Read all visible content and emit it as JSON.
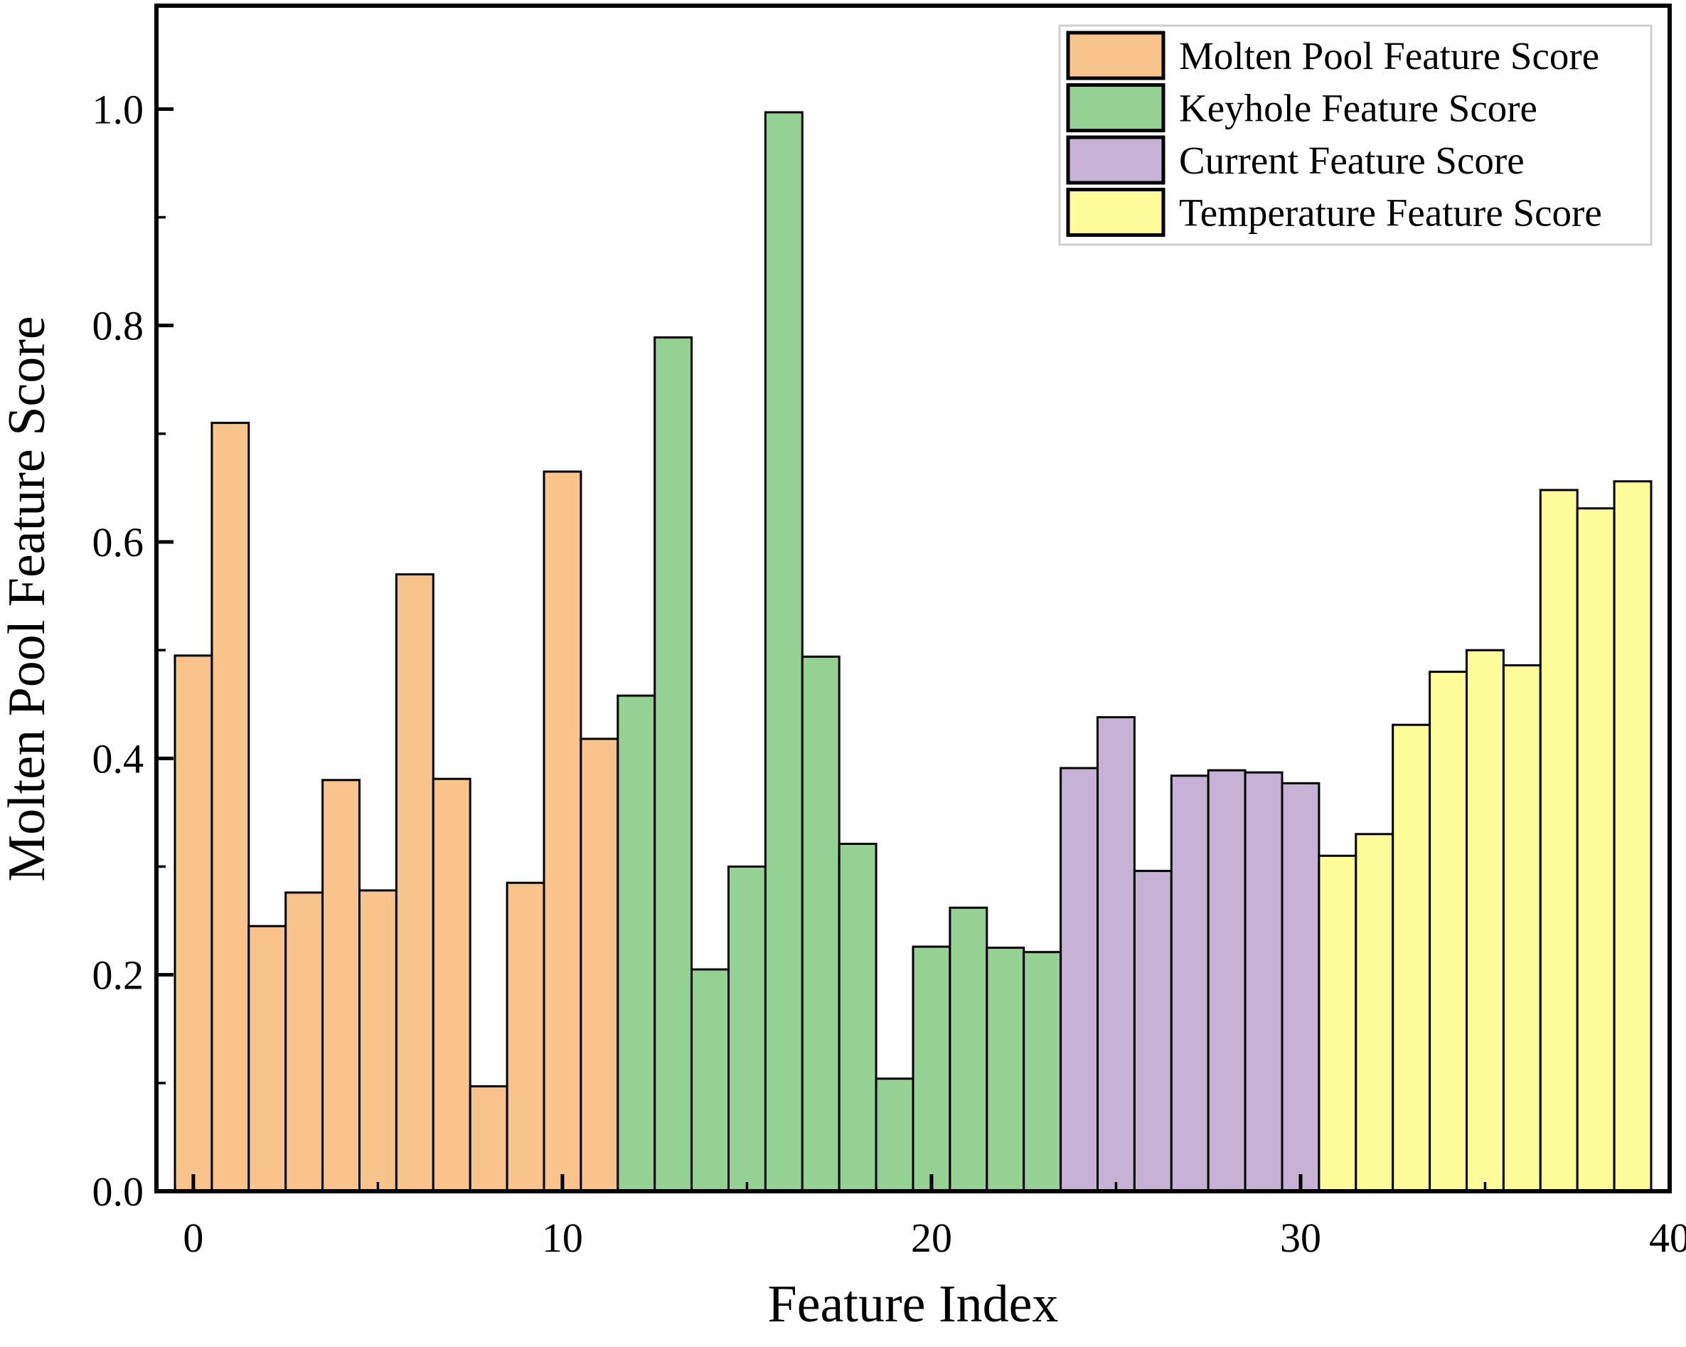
{
  "figure": {
    "background": "#ffffff",
    "axis_color": "#000000"
  },
  "chart_data": {
    "type": "bar",
    "title": "",
    "xlabel": "Feature Index",
    "ylabel": "Molten Pool Feature Score",
    "xlim": [
      -1,
      40
    ],
    "ylim": [
      0,
      1.0955
    ],
    "grid": false,
    "bar_width": 1.0,
    "edge_color": "#000000",
    "x_major_ticks": [
      0,
      10,
      20,
      30,
      40
    ],
    "x_major_tick_labels": [
      "0",
      "10",
      "20",
      "30",
      "40"
    ],
    "x_minor_ticks": [
      5,
      15,
      25,
      35
    ],
    "y_major_ticks": [
      0.0,
      0.2,
      0.4,
      0.6,
      0.8,
      1.0
    ],
    "y_major_tick_labels": [
      "0.0",
      "0.2",
      "0.4",
      "0.6",
      "0.8",
      "1.0"
    ],
    "y_minor_ticks": [
      0.1,
      0.3,
      0.5,
      0.7,
      0.9
    ],
    "legend": {
      "position": "upper right",
      "background": "#ffffff",
      "border_color": "#cfcfcf"
    },
    "series": [
      {
        "name": "Molten Pool Feature Score",
        "color": "#F9C48B",
        "start_index": 0,
        "values": [
          0.495,
          0.71,
          0.245,
          0.276,
          0.38,
          0.278,
          0.57,
          0.381,
          0.097,
          0.285,
          0.665,
          0.418
        ]
      },
      {
        "name": "Keyhole Feature Score",
        "color": "#96D194",
        "start_index": 12,
        "values": [
          0.458,
          0.789,
          0.205,
          0.3,
          0.997,
          0.494,
          0.321,
          0.104,
          0.226,
          0.262,
          0.225,
          0.221
        ]
      },
      {
        "name": "Current Feature Score",
        "color": "#C5B2D5",
        "start_index": 24,
        "values": [
          0.391,
          0.438,
          0.296,
          0.384,
          0.389,
          0.387,
          0.377
        ]
      },
      {
        "name": "Temperature Feature Score",
        "color": "#FCFC99",
        "start_index": 31,
        "values": [
          0.31,
          0.33,
          0.431,
          0.48,
          0.5,
          0.486,
          0.648,
          0.631,
          0.656
        ]
      }
    ]
  }
}
